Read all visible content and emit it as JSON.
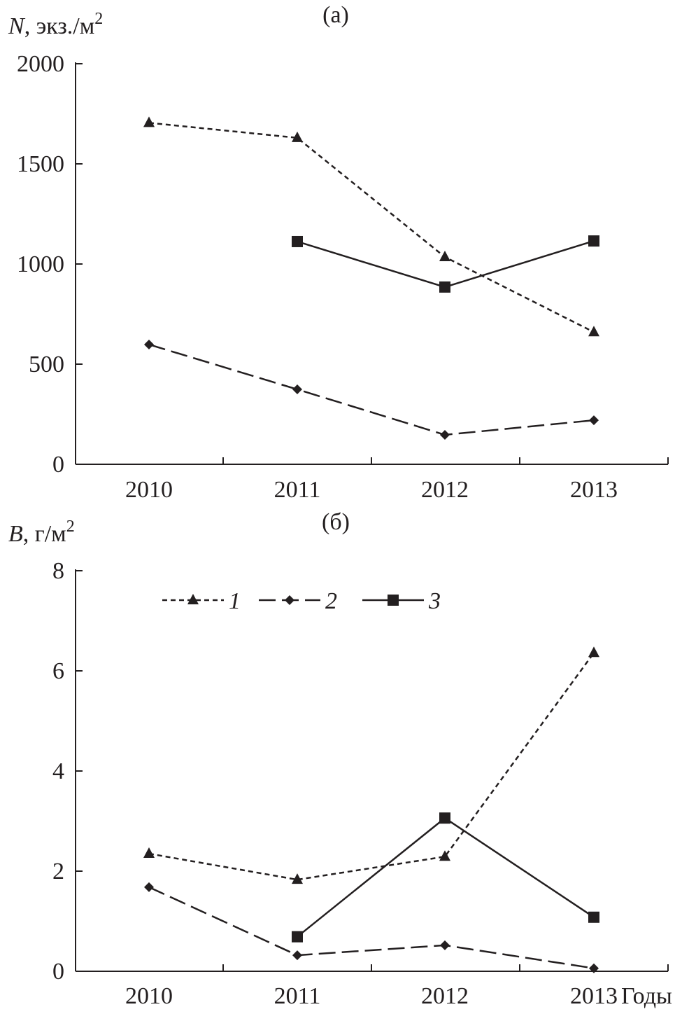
{
  "chart_data": [
    {
      "type": "line",
      "title": "(а)",
      "ylabel_symbol": "N",
      "ylabel_unit": ", экз./м",
      "ylabel_sup": "2",
      "xlabel": "",
      "categories": [
        "2010",
        "2011",
        "2012",
        "2013"
      ],
      "ylim": [
        0,
        2000
      ],
      "yticks": [
        0,
        500,
        1000,
        1500,
        2000
      ],
      "grid": false,
      "series": [
        {
          "name": "1",
          "marker": "triangle",
          "line": "short-dash",
          "values": [
            1705,
            1630,
            1035,
            660
          ]
        },
        {
          "name": "2",
          "marker": "diamond",
          "line": "long-dash",
          "values": [
            598,
            374,
            147,
            220
          ]
        },
        {
          "name": "3",
          "marker": "square",
          "line": "solid",
          "values": [
            null,
            1112,
            885,
            1115
          ]
        }
      ]
    },
    {
      "type": "line",
      "title": "(б)",
      "ylabel_symbol": "B",
      "ylabel_unit": ", г/м",
      "ylabel_sup": "2",
      "xlabel": "Годы",
      "categories": [
        "2010",
        "2011",
        "2012",
        "2013"
      ],
      "ylim": [
        0,
        8
      ],
      "yticks": [
        0,
        2,
        4,
        6,
        8
      ],
      "grid": false,
      "legend": {
        "placement": "top-center",
        "entries": [
          "1",
          "2",
          "3"
        ]
      },
      "series": [
        {
          "name": "1",
          "marker": "triangle",
          "line": "short-dash",
          "values": [
            2.35,
            1.83,
            2.29,
            6.36
          ]
        },
        {
          "name": "2",
          "marker": "diamond",
          "line": "long-dash",
          "values": [
            1.68,
            0.32,
            0.52,
            0.06
          ]
        },
        {
          "name": "3",
          "marker": "square",
          "line": "solid",
          "values": [
            null,
            0.69,
            3.06,
            1.08
          ]
        }
      ]
    }
  ],
  "colors": {
    "ink": "#231f20"
  }
}
